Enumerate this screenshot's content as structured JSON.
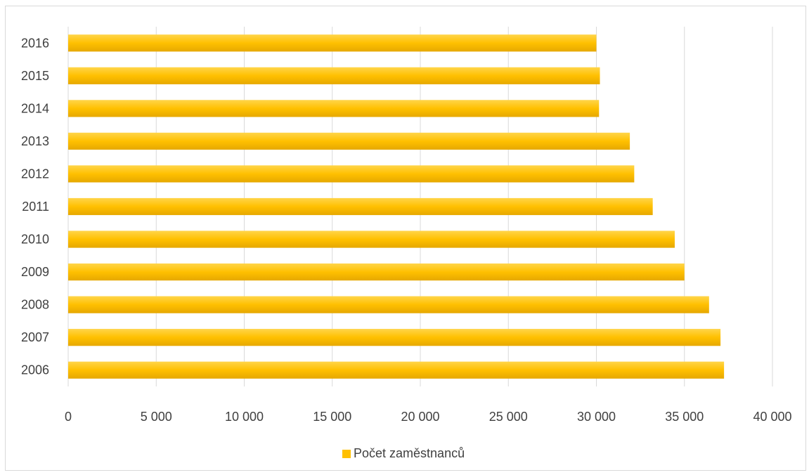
{
  "chart_data": {
    "type": "bar",
    "orientation": "horizontal",
    "categories": [
      "2016",
      "2015",
      "2014",
      "2013",
      "2012",
      "2011",
      "2010",
      "2009",
      "2008",
      "2007",
      "2006"
    ],
    "series": [
      {
        "name": "Počet zaměstnanců",
        "color": "#FFC000",
        "values": [
          30000,
          30200,
          30150,
          31900,
          32150,
          33200,
          34450,
          35000,
          36400,
          37050,
          37250
        ]
      }
    ],
    "xlim": [
      0,
      40000
    ],
    "xticks": [
      0,
      5000,
      10000,
      15000,
      20000,
      25000,
      30000,
      35000,
      40000
    ],
    "xtick_labels": [
      "0",
      "5 000",
      "10 000",
      "15 000",
      "20 000",
      "25 000",
      "30 000",
      "35 000",
      "40 000"
    ],
    "grid": "vertical",
    "legend_position": "bottom"
  }
}
